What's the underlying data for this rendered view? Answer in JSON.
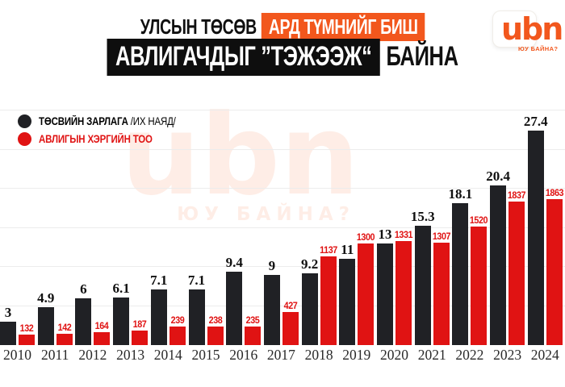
{
  "header": {
    "line1_plain": "УЛСЫН ТӨСӨВ",
    "line1_highlight": "АРД ТҮМНИЙГ БИШ",
    "line2_highlight": "АВЛИГАЧДЫГ ”ТЭЖЭЭЖ“",
    "line2_plain": "БАЙНА"
  },
  "logo": {
    "text": "ubn",
    "tagline": "ЮУ БАЙНА?"
  },
  "watermark": {
    "text": "ubn",
    "tagline": "ЮУ БАЙНА?"
  },
  "legend": {
    "items": [
      {
        "label": "ТӨСВИЙН ЗАРЛАГА",
        "suffix": " /ИХ НАЯД/",
        "color": "#202125"
      },
      {
        "label": "АВЛИГЫН ХЭРГИЙН ТОО",
        "suffix": "",
        "color": "#e01313"
      }
    ]
  },
  "chart_data": {
    "type": "bar",
    "title": "УЛСЫН ТӨСӨВ АРД ТҮМНИЙГ БИШ АВЛИГАЧДЫГ ”ТЭЖЭЭЖ“ БАЙНА",
    "categories": [
      "2010",
      "2011",
      "2012",
      "2013",
      "2014",
      "2015",
      "2016",
      "2017",
      "2018",
      "2019",
      "2020",
      "2021",
      "2022",
      "2023",
      "2024"
    ],
    "series": [
      {
        "name": "ТӨСВИЙН ЗАРЛАГА /ИХ НАЯД/",
        "color": "#202125",
        "values": [
          3,
          4.9,
          6,
          6.1,
          7.1,
          7.1,
          9.4,
          9,
          9.2,
          11,
          13,
          15.3,
          18.1,
          20.4,
          27.4
        ],
        "value_range": [
          0,
          30
        ]
      },
      {
        "name": "АВЛИГЫН ХЭРГИЙН ТОО",
        "color": "#e01313",
        "values": [
          132,
          142,
          164,
          187,
          239,
          238,
          235,
          427,
          1137,
          1300,
          1331,
          1307,
          1520,
          1837,
          1863
        ],
        "value_range": [
          0,
          1900
        ]
      }
    ],
    "xlabel": "",
    "ylabel": "",
    "grid": "horizontal-light",
    "legend_position": "top-left",
    "bar_value_labels": true
  },
  "colors": {
    "accent_orange": "#f2571d",
    "bar_black": "#202125",
    "bar_red": "#e01313",
    "background": "#ffffff",
    "gridline": "#ececec"
  }
}
